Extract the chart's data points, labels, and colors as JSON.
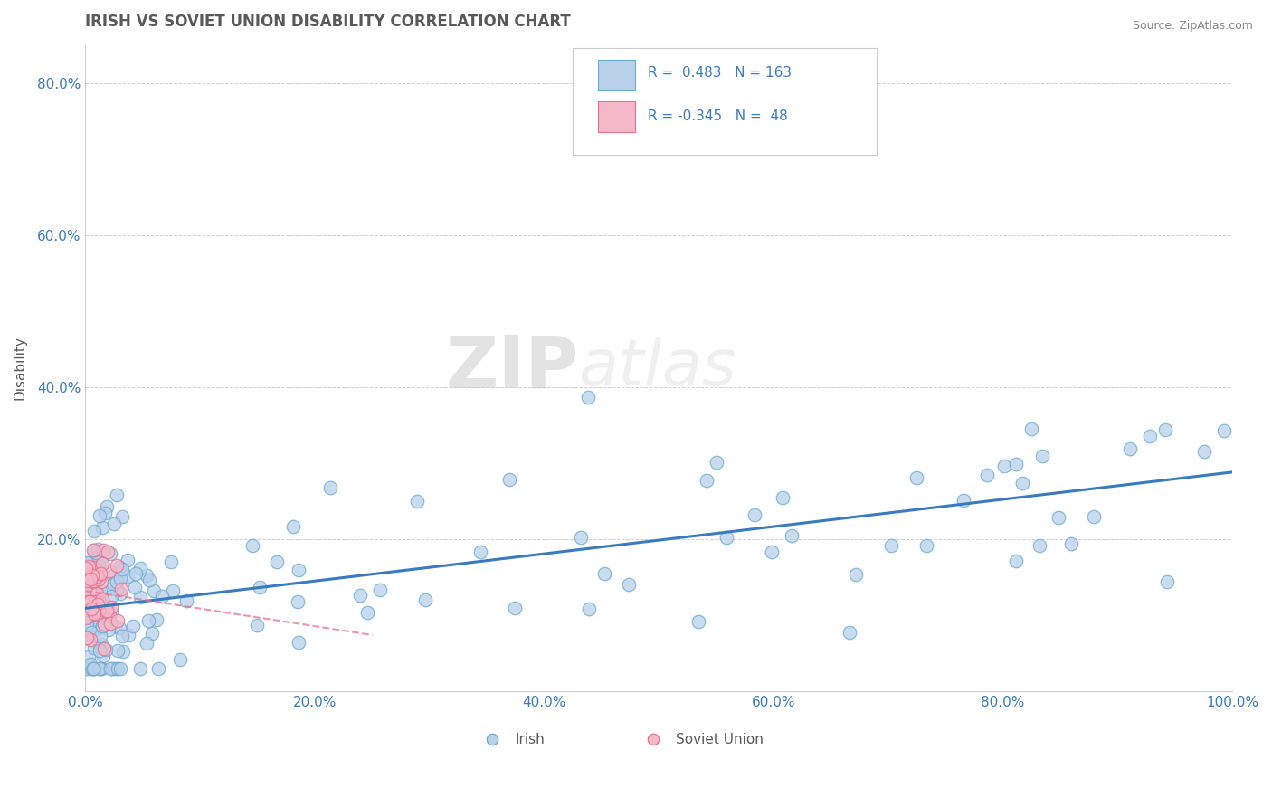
{
  "title": "IRISH VS SOVIET UNION DISABILITY CORRELATION CHART",
  "source_text": "Source: ZipAtlas.com",
  "watermark_zip": "ZIP",
  "watermark_atlas": "atlas",
  "xlabel": "",
  "ylabel": "Disability",
  "xlim": [
    0.0,
    1.0
  ],
  "ylim": [
    0.0,
    0.85
  ],
  "xticks": [
    0.0,
    0.2,
    0.4,
    0.6,
    0.8,
    1.0
  ],
  "xtick_labels": [
    "0.0%",
    "20.0%",
    "40.0%",
    "60.0%",
    "80.0%",
    "100.0%"
  ],
  "yticks": [
    0.0,
    0.2,
    0.4,
    0.6,
    0.8
  ],
  "ytick_labels": [
    "",
    "20.0%",
    "40.0%",
    "60.0%",
    "80.0%"
  ],
  "irish_R": 0.483,
  "irish_N": 163,
  "soviet_R": -0.345,
  "soviet_N": 48,
  "irish_color": "#b8d0ea",
  "irish_edge_color": "#6aabd2",
  "soviet_color": "#f4b8c8",
  "soviet_edge_color": "#e87090",
  "irish_line_color": "#3a7bbf",
  "soviet_line_color": "#e87090",
  "legend_R_color": "#3a7bbf",
  "title_color": "#595959",
  "axis_color": "#595959",
  "tick_color": "#3a7bbf",
  "source_color": "#888888",
  "grid_color": "#d0d0d0",
  "background_color": "#ffffff"
}
